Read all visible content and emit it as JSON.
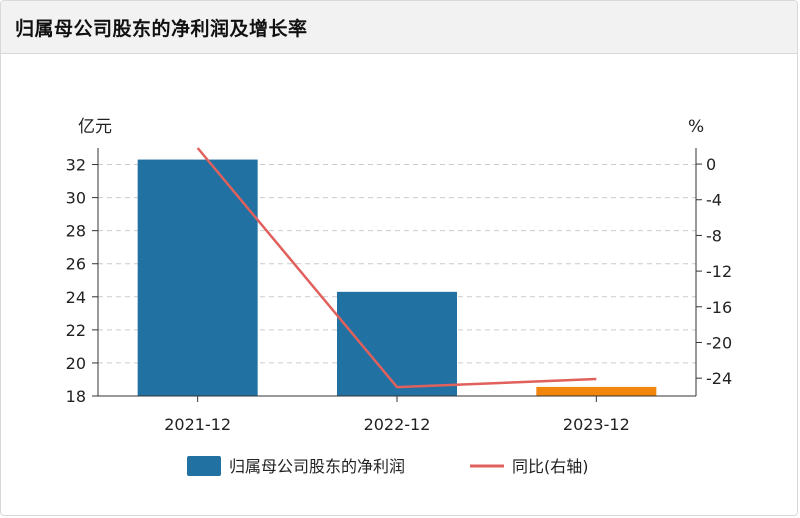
{
  "panel": {
    "title": "归属母公司股东的净利润及增长率"
  },
  "chart_data": {
    "type": "bar",
    "categories": [
      "2021-12",
      "2022-12",
      "2023-12"
    ],
    "left_axis": {
      "unit": "亿元",
      "range": [
        18,
        33
      ],
      "ticks": [
        18,
        20,
        22,
        24,
        26,
        28,
        30,
        32
      ]
    },
    "right_axis": {
      "unit": "%",
      "range": [
        -26.0,
        1.8
      ],
      "ticks": [
        0,
        -4,
        -8,
        -12,
        -16,
        -20,
        -24
      ]
    },
    "series": [
      {
        "name": "归属母公司股东的净利润",
        "type": "bar",
        "axis": "left",
        "color": "#2271a3",
        "values": [
          32.3,
          24.3,
          18.55
        ],
        "colors": [
          "#2271a3",
          "#2271a3",
          "#f2860d"
        ]
      },
      {
        "name": "同比(右轴)",
        "type": "line",
        "axis": "right",
        "color": "#e0605c",
        "values": [
          1.8,
          -25.0,
          -24.1
        ]
      }
    ],
    "grid": true,
    "legend": "bottom-center"
  }
}
